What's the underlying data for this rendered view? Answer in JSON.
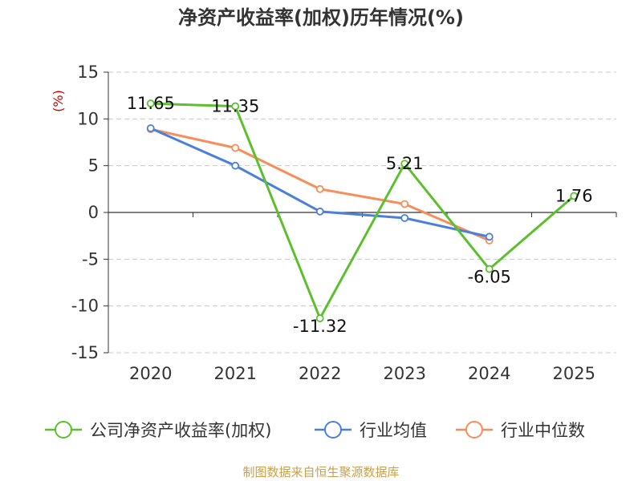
{
  "chart_data": {
    "type": "line",
    "title": "净资产收益率(加权)历年情况(%)",
    "unit_label": "(%)",
    "categories": [
      "2020",
      "2021",
      "2022",
      "2023",
      "2024",
      "2025"
    ],
    "ylim": [
      -15,
      15
    ],
    "yticks": [
      15,
      10,
      5,
      0,
      -5,
      -10,
      -15
    ],
    "ytick_labels": [
      "15",
      "10",
      "5",
      "0",
      "-5",
      "-10",
      "-15"
    ],
    "grid": true,
    "legend_position": "bottom",
    "series": [
      {
        "name": "公司净资产收益率(加权)",
        "color": "#5cc02e",
        "values": [
          11.65,
          11.35,
          -11.32,
          5.21,
          -6.05,
          1.76
        ],
        "labels": [
          "11.65",
          "11.35",
          "-11.32",
          "5.21",
          "-6.05",
          "1.76"
        ]
      },
      {
        "name": "行业均值",
        "color": "#4a7fdc",
        "values": [
          9.0,
          5.0,
          0.1,
          -0.6,
          -2.6,
          null
        ]
      },
      {
        "name": "行业中位数",
        "color": "#f58e5a",
        "values": [
          8.9,
          6.9,
          2.5,
          0.9,
          -3.0,
          null
        ]
      }
    ],
    "source": "制图数据来自恒生聚源数据库"
  }
}
